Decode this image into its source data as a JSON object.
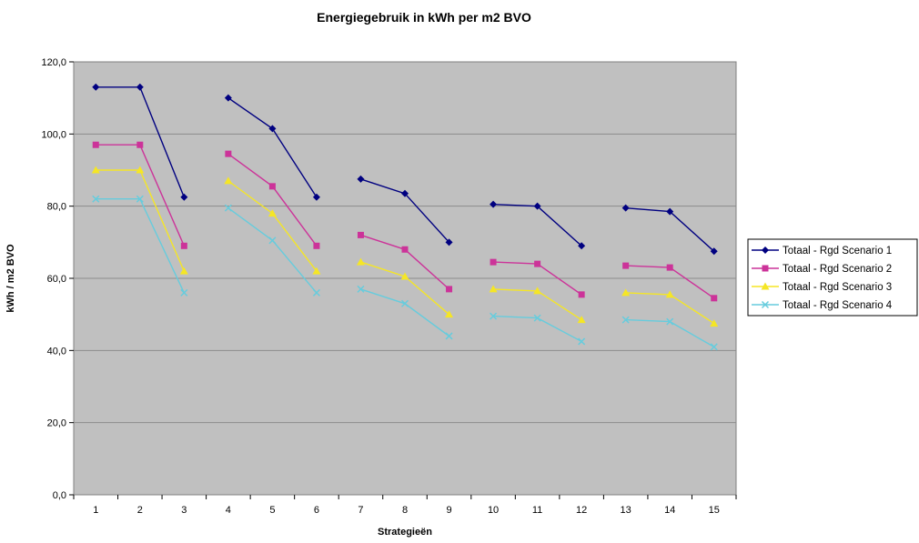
{
  "chart_data": {
    "type": "line",
    "title": "Energiegebruik in kWh per m2 BVO",
    "xlabel": "Strategieën",
    "ylabel": "kWh / m2 BVO",
    "categories": [
      "1",
      "2",
      "3",
      "4",
      "5",
      "6",
      "7",
      "8",
      "9",
      "10",
      "11",
      "12",
      "13",
      "14",
      "15"
    ],
    "yticks": [
      "0,0",
      "20,0",
      "40,0",
      "60,0",
      "80,0",
      "100,0",
      "120,0"
    ],
    "ylim": [
      0,
      120
    ],
    "grid": true,
    "plot_background": "#c0c0c0",
    "legend_position": "right",
    "segments": [
      [
        0,
        1,
        2
      ],
      [
        3,
        4,
        5
      ],
      [
        6,
        7,
        8
      ],
      [
        9,
        10,
        11
      ],
      [
        12,
        13,
        14
      ]
    ],
    "series": [
      {
        "name": "Totaal - Rgd Scenario 1",
        "color": "#000080",
        "marker": "diamond",
        "values": [
          113.0,
          113.0,
          82.5,
          110.0,
          101.5,
          82.5,
          87.5,
          83.5,
          70.0,
          80.5,
          80.0,
          69.0,
          79.5,
          78.5,
          67.5
        ]
      },
      {
        "name": "Totaal - Rgd Scenario 2",
        "color": "#cc3399",
        "marker": "square",
        "values": [
          97.0,
          97.0,
          69.0,
          94.5,
          85.5,
          69.0,
          72.0,
          68.0,
          57.0,
          64.5,
          64.0,
          55.5,
          63.5,
          63.0,
          54.5
        ]
      },
      {
        "name": "Totaal - Rgd Scenario 3",
        "color": "#f5e625",
        "marker": "triangle",
        "values": [
          90.0,
          90.0,
          62.0,
          87.0,
          78.0,
          62.0,
          64.5,
          60.5,
          50.0,
          57.0,
          56.5,
          48.5,
          56.0,
          55.5,
          47.5
        ]
      },
      {
        "name": "Totaal - Rgd Scenario 4",
        "color": "#66ccdd",
        "marker": "x",
        "values": [
          82.0,
          82.0,
          56.0,
          79.5,
          70.5,
          56.0,
          57.0,
          53.0,
          44.0,
          49.5,
          49.0,
          42.5,
          48.5,
          48.0,
          41.0
        ]
      }
    ]
  }
}
